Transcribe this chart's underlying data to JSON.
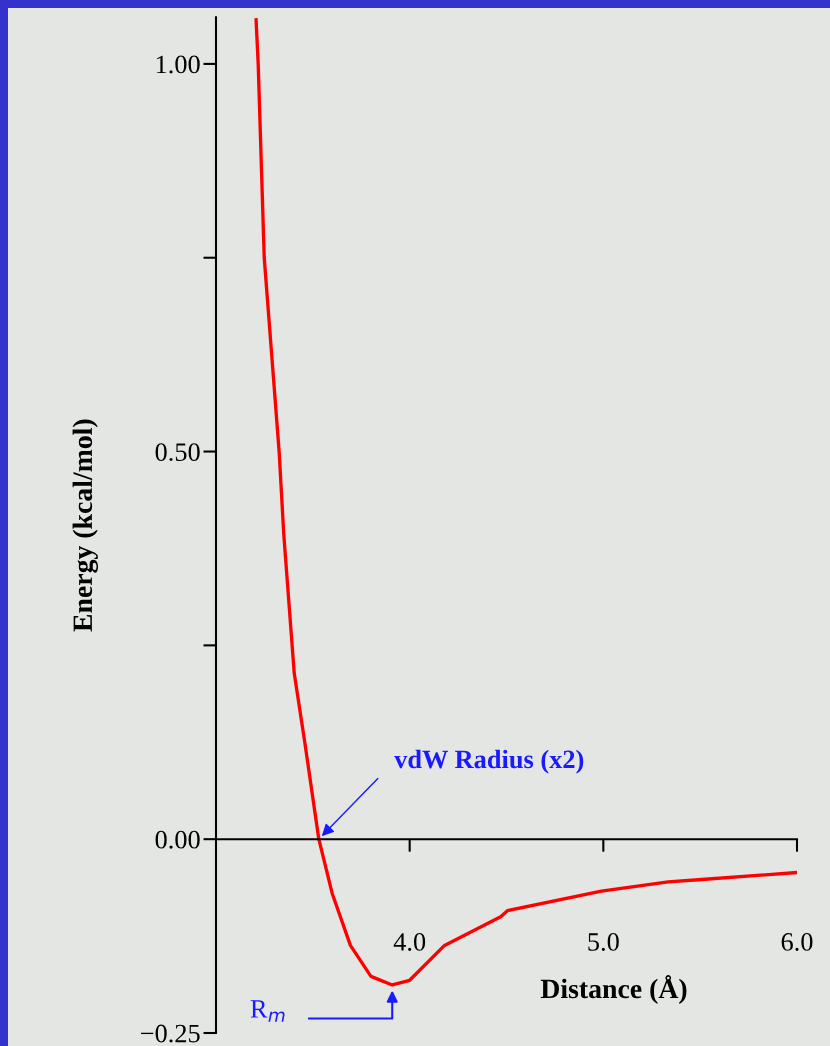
{
  "chart_data": {
    "type": "line",
    "xlabel": "Distance (Å)",
    "ylabel": "Energy (kcal/mol)",
    "x": [
      3.207,
      3.218,
      3.249,
      3.326,
      3.35,
      3.404,
      3.459,
      3.531,
      3.6,
      3.694,
      3.8,
      3.91,
      4.0,
      4.18,
      4.47,
      4.506,
      4.99,
      5.335,
      5.508,
      6.0
    ],
    "series": [
      {
        "color": "#ff0000",
        "values": [
          1.057,
          0.999,
          0.75,
          0.5,
          0.393,
          0.214,
          0.124,
          0.0,
          -0.07,
          -0.137,
          -0.177,
          -0.188,
          -0.182,
          -0.137,
          -0.1,
          -0.092,
          -0.067,
          -0.055,
          -0.052,
          -0.043
        ]
      }
    ],
    "xlim": [
      3.0,
      6.0
    ],
    "ylim": [
      -0.25,
      1.06
    ],
    "xticks": [
      {
        "value": 4.0,
        "label": "4.0"
      },
      {
        "value": 5.0,
        "label": "5.0"
      },
      {
        "value": 6.0,
        "label": "6.0"
      }
    ],
    "yticks": [
      {
        "value": -0.25,
        "label": "−0.25"
      },
      {
        "value": 0,
        "label": "0.00"
      },
      {
        "value": 0.25,
        "label": null
      },
      {
        "value": 0.5,
        "label": "0.50"
      },
      {
        "value": 0.75,
        "label": null
      },
      {
        "value": 1.0,
        "label": "1.00"
      }
    ],
    "annotations": [
      {
        "text": "vdW Radius (x2)",
        "x": 3.531,
        "y": 0.0
      },
      {
        "text": "R$_{m}$",
        "x": 3.91,
        "y": -0.188
      }
    ],
    "legend": false,
    "marker": "none",
    "line_style": "solid"
  }
}
